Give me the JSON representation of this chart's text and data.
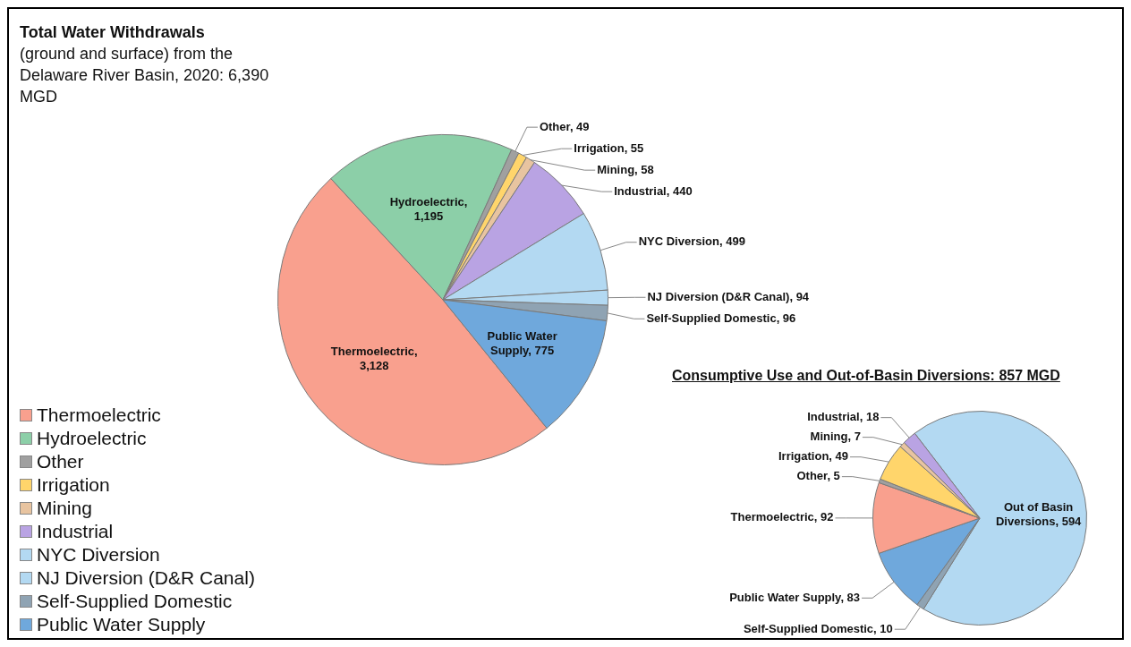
{
  "chart_data": [
    {
      "type": "pie",
      "title": "Total Water Withdrawals",
      "subtitle": "(ground and surface) from the Delaware River Basin, 2020: 6,390 MGD",
      "categories": [
        "Thermoelectric",
        "Hydroelectric",
        "Other",
        "Irrigation",
        "Mining",
        "Industrial",
        "NYC Diversion",
        "NJ Diversion (D&R Canal)",
        "Self-Supplied Domestic",
        "Public Water Supply"
      ],
      "values": [
        3128,
        1195,
        49,
        55,
        58,
        440,
        499,
        94,
        96,
        775
      ],
      "colors": [
        "#f9a08e",
        "#8ccfa8",
        "#a0a0a0",
        "#ffd56b",
        "#e8c4a0",
        "#b9a3e3",
        "#b3d9f2",
        "#b3d9f2",
        "#8fa3b3",
        "#6fa8dc"
      ],
      "value_labels": [
        "Thermoelectric, 3,128",
        "Hydroelectric, 1,195",
        "Other, 49",
        "Irrigation, 55",
        "Mining, 58",
        "Industrial, 440",
        "NYC Diversion, 499",
        "NJ Diversion (D&R Canal), 94",
        "Self-Supplied Domestic, 96",
        "Public Water Supply, 775"
      ],
      "legend": "bottom left"
    },
    {
      "type": "pie",
      "title": "Consumptive Use and Out-of-Basin Diversions: 857 MGD",
      "categories": [
        null,
        null,
        null,
        null,
        null,
        null,
        null,
        null
      ],
      "values": [
        594,
        10,
        83,
        92,
        5,
        49,
        7,
        18
      ],
      "colors": [
        "#b3d9f2",
        "#8fa3b3",
        "#6fa8dc",
        "#f9a08e",
        "#a0a0a0",
        "#ffd56b",
        "#e8c4a0",
        "#b9a3e3"
      ],
      "value_labels": [
        "Out of Basin Diversions, 594",
        "Self-Supplied Domestic, 10",
        "Public Water Supply, 83",
        "Thermoelectric, 92",
        "Other, 5",
        "Irrigation, 49",
        "Mining, 7",
        "Industrial, 18"
      ]
    }
  ]
}
